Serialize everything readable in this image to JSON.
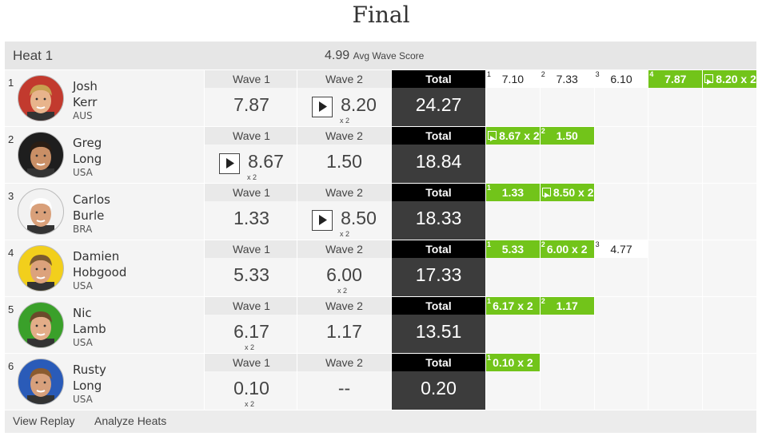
{
  "title": "Final",
  "heat": {
    "name": "Heat 1",
    "avg_score": "4.99",
    "avg_label": "Avg Wave Score"
  },
  "rows": [
    {
      "rank": "1",
      "first": "Josh",
      "last": "Kerr",
      "country": "AUS",
      "wave1": {
        "label": "Wave 1",
        "score": "7.87"
      },
      "wave2": {
        "label": "Wave 2",
        "score": "8.20",
        "multiplier": "x 2",
        "replay": true
      },
      "total_label": "Total",
      "total": "24.27",
      "waves": [
        {
          "n": "1",
          "score": "7.10"
        },
        {
          "n": "2",
          "score": "7.33"
        },
        {
          "n": "3",
          "score": "6.10"
        },
        {
          "n": "4",
          "score": "7.87",
          "counted": true
        },
        {
          "score": "8.20 x 2",
          "counted": true,
          "replay": true
        }
      ]
    },
    {
      "rank": "2",
      "first": "Greg",
      "last": "Long",
      "country": "USA",
      "wave1": {
        "label": "Wave 1",
        "score": "8.67",
        "multiplier": "x 2",
        "replay": true
      },
      "wave2": {
        "label": "Wave 2",
        "score": "1.50"
      },
      "total_label": "Total",
      "total": "18.84",
      "waves": [
        {
          "score": "8.67 x 2",
          "counted": true,
          "replay": true
        },
        {
          "n": "2",
          "score": "1.50",
          "counted": true
        }
      ]
    },
    {
      "rank": "3",
      "first": "Carlos",
      "last": "Burle",
      "country": "BRA",
      "wave1": {
        "label": "Wave 1",
        "score": "1.33"
      },
      "wave2": {
        "label": "Wave 2",
        "score": "8.50",
        "multiplier": "x 2",
        "replay": true
      },
      "total_label": "Total",
      "total": "18.33",
      "waves": [
        {
          "n": "1",
          "score": "1.33",
          "counted": true
        },
        {
          "score": "8.50 x 2",
          "counted": true,
          "replay": true
        }
      ]
    },
    {
      "rank": "4",
      "first": "Damien",
      "last": "Hobgood",
      "country": "USA",
      "wave1": {
        "label": "Wave 1",
        "score": "5.33"
      },
      "wave2": {
        "label": "Wave 2",
        "score": "6.00",
        "multiplier": "x 2"
      },
      "total_label": "Total",
      "total": "17.33",
      "waves": [
        {
          "n": "1",
          "score": "5.33",
          "counted": true
        },
        {
          "n": "2",
          "score": "6.00 x 2",
          "counted": true
        },
        {
          "n": "3",
          "score": "4.77"
        }
      ]
    },
    {
      "rank": "5",
      "first": "Nic",
      "last": "Lamb",
      "country": "USA",
      "wave1": {
        "label": "Wave 1",
        "score": "6.17",
        "multiplier": "x 2"
      },
      "wave2": {
        "label": "Wave 2",
        "score": "1.17"
      },
      "total_label": "Total",
      "total": "13.51",
      "waves": [
        {
          "n": "1",
          "score": "6.17 x 2",
          "counted": true
        },
        {
          "n": "2",
          "score": "1.17",
          "counted": true
        }
      ]
    },
    {
      "rank": "6",
      "first": "Rusty",
      "last": "Long",
      "country": "USA",
      "wave1": {
        "label": "Wave 1",
        "score": "0.10",
        "multiplier": "x 2"
      },
      "wave2": {
        "label": "Wave 2",
        "score": "--"
      },
      "total_label": "Total",
      "total": "0.20",
      "waves": [
        {
          "n": "1",
          "score": "0.10 x 2",
          "counted": true
        }
      ]
    }
  ],
  "footer": {
    "links": [
      "View Replay",
      "Analyze Heats"
    ]
  }
}
